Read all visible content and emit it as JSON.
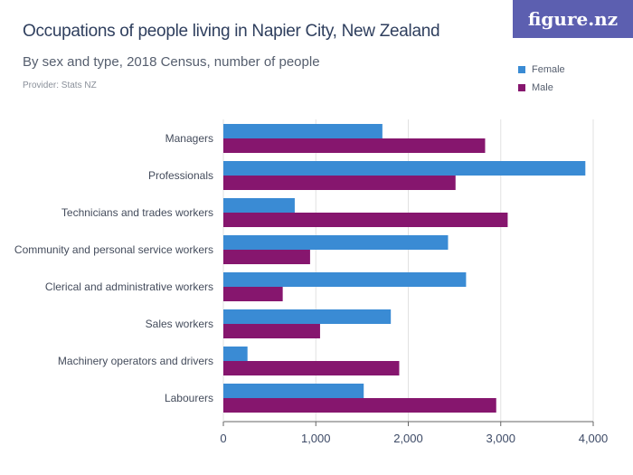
{
  "header": {
    "title": "Occupations of people living in Napier City, New Zealand",
    "subtitle": "By sex and type, 2018 Census, number of people",
    "provider": "Provider: Stats NZ",
    "logo_text": "figure.nz"
  },
  "colors": {
    "Female": "#3a8bd4",
    "Male": "#86166e",
    "logo": "#5c5fb0"
  },
  "chart_data": {
    "type": "bar",
    "orientation": "horizontal",
    "title": "Occupations of people living in Napier City, New Zealand",
    "subtitle": "By sex and type, 2018 Census, number of people",
    "categories": [
      "Managers",
      "Professionals",
      "Technicians and trades workers",
      "Community and personal service workers",
      "Clerical and administrative workers",
      "Sales workers",
      "Machinery operators and drivers",
      "Labourers"
    ],
    "series": [
      {
        "name": "Female",
        "values": [
          1720,
          3915,
          772,
          2430,
          2625,
          1811,
          261,
          1518
        ]
      },
      {
        "name": "Male",
        "values": [
          2831,
          2511,
          3075,
          938,
          642,
          1046,
          1902,
          2951
        ]
      }
    ],
    "xlim": [
      0,
      4000
    ],
    "xticks": [
      0,
      1000,
      2000,
      3000,
      4000
    ],
    "xtick_labels": [
      "0",
      "1,000",
      "2,000",
      "3,000",
      "4,000"
    ],
    "grid": true,
    "legend": "top-right"
  }
}
